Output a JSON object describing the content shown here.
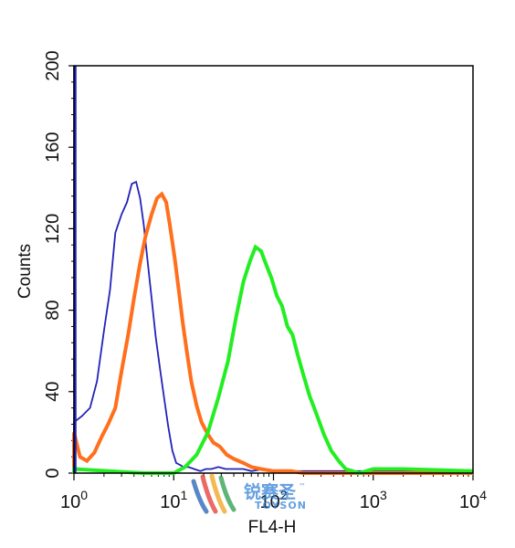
{
  "chart_data": {
    "type": "line",
    "title": "",
    "xlabel": "FL4-H",
    "ylabel": "Counts",
    "x_scale": "log",
    "xlim": [
      1,
      10000
    ],
    "ylim": [
      0,
      200
    ],
    "grid": false,
    "x_ticks": [
      {
        "value": 1,
        "base": "10",
        "exp": "0"
      },
      {
        "value": 10,
        "base": "10",
        "exp": "1"
      },
      {
        "value": 100,
        "base": "10",
        "exp": "2"
      },
      {
        "value": 1000,
        "base": "10",
        "exp": "3"
      },
      {
        "value": 10000,
        "base": "10",
        "exp": "4"
      }
    ],
    "y_ticks": [
      {
        "value": 0,
        "label": "0"
      },
      {
        "value": 40,
        "label": "40"
      },
      {
        "value": 80,
        "label": "80"
      },
      {
        "value": 120,
        "label": "120"
      },
      {
        "value": 160,
        "label": "160"
      },
      {
        "value": 200,
        "label": "200"
      }
    ],
    "series": [
      {
        "color": "#2222bb",
        "x": [
          1,
          1.2,
          1.45,
          1.7,
          2.0,
          2.3,
          2.6,
          3.0,
          3.4,
          3.8,
          4.2,
          4.6,
          5.0,
          5.5,
          6.0,
          6.6,
          7.3,
          8.0,
          8.8,
          9.7,
          10.6,
          11.6,
          12.5,
          14,
          16,
          18.5,
          21,
          24,
          28,
          33,
          40,
          50,
          60,
          80,
          100,
          10000
        ],
        "y": [
          25,
          28,
          32,
          45,
          70,
          90,
          118,
          127,
          133,
          142,
          143,
          135,
          122,
          103,
          86,
          67,
          51,
          37,
          23,
          11,
          5,
          4,
          3,
          3,
          2,
          1,
          2,
          2,
          3,
          2,
          2,
          2,
          1,
          2,
          1,
          1
        ]
      },
      {
        "color": "#ff6f1c",
        "x": [
          1,
          1.15,
          1.35,
          1.6,
          1.9,
          2.2,
          2.6,
          3.0,
          3.5,
          4.0,
          4.6,
          5.2,
          6.0,
          6.8,
          7.6,
          8.4,
          9.2,
          10.2,
          11.3,
          12.3,
          13.5,
          15,
          17,
          19,
          22,
          25,
          29,
          34,
          40,
          50,
          60,
          75,
          100,
          150,
          200,
          500,
          1000,
          10000
        ],
        "y": [
          20,
          8,
          6,
          10,
          18,
          24,
          32,
          50,
          68,
          86,
          103,
          116,
          127,
          135,
          137,
          133,
          121,
          106,
          89,
          74,
          60,
          45,
          33,
          25,
          19,
          15,
          13,
          9,
          7,
          5,
          3,
          2,
          1,
          1,
          0,
          0,
          0,
          0
        ]
      },
      {
        "color": "#22ee22",
        "x": [
          1,
          5,
          10,
          13,
          17,
          22,
          28,
          35,
          42,
          50,
          58,
          66,
          75,
          85,
          95,
          108,
          122,
          138,
          155,
          175,
          200,
          230,
          270,
          320,
          380,
          450,
          530,
          620,
          720,
          850,
          1000,
          2000,
          10000
        ],
        "y": [
          2,
          0,
          0,
          3,
          9,
          20,
          37,
          55,
          76,
          94,
          104,
          111,
          109,
          102,
          96,
          87,
          82,
          72,
          68,
          58,
          48,
          38,
          29,
          19,
          11,
          6,
          2,
          1,
          0,
          1,
          2,
          2,
          1
        ]
      }
    ]
  },
  "watermark": {
    "chinese": "锐赛圣",
    "latin": "TOYSON",
    "tm": "™"
  }
}
